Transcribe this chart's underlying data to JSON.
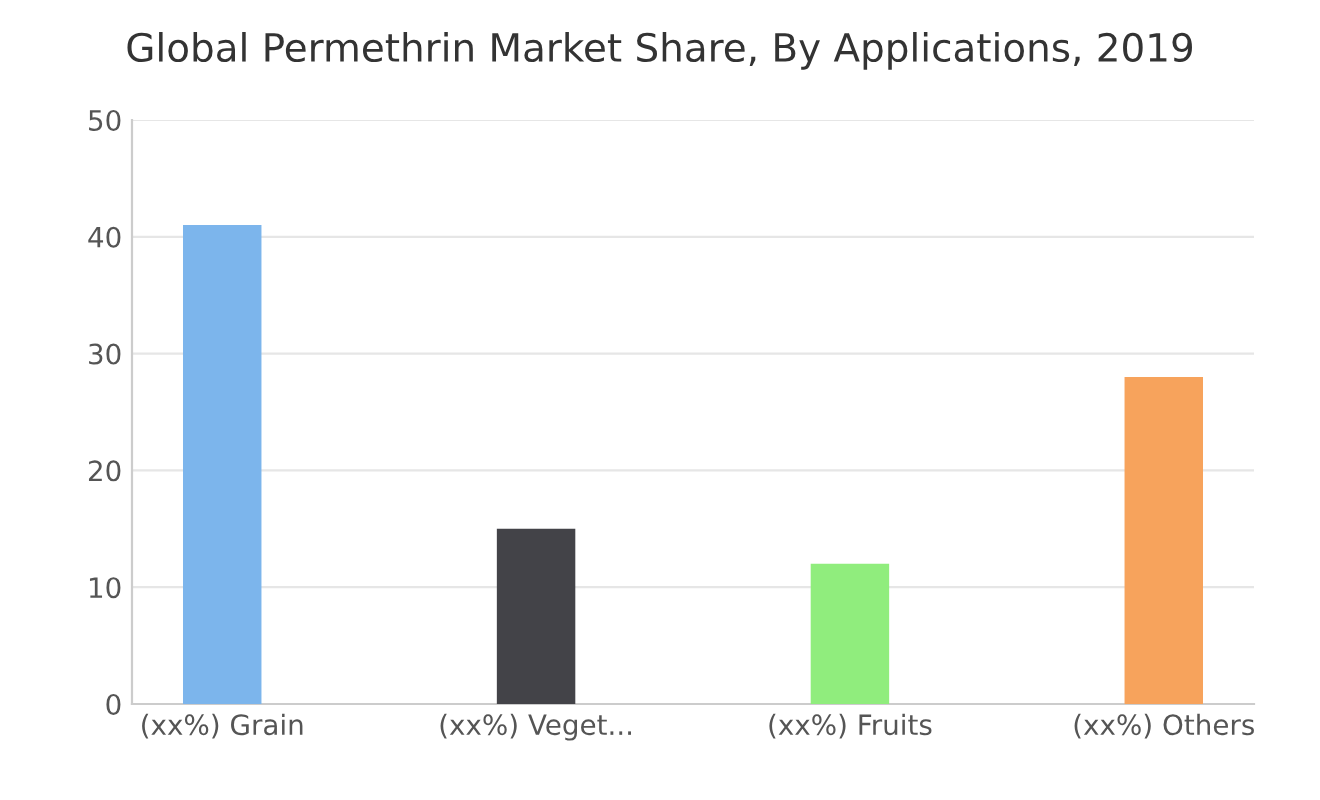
{
  "chart_data": {
    "type": "bar",
    "title": "Global Permethrin Market Share, By Applications, 2019",
    "categories": [
      "(xx%) Grain",
      "(xx%) Veget...",
      "(xx%) Fruits",
      "(xx%) Others"
    ],
    "values": [
      41,
      15,
      12,
      28
    ],
    "colors": [
      "#7cb5ec",
      "#434348",
      "#90ed7d",
      "#f7a35c"
    ],
    "ylim": [
      0,
      50
    ],
    "yticks": [
      0,
      10,
      20,
      30,
      40,
      50
    ],
    "grid": "y"
  }
}
